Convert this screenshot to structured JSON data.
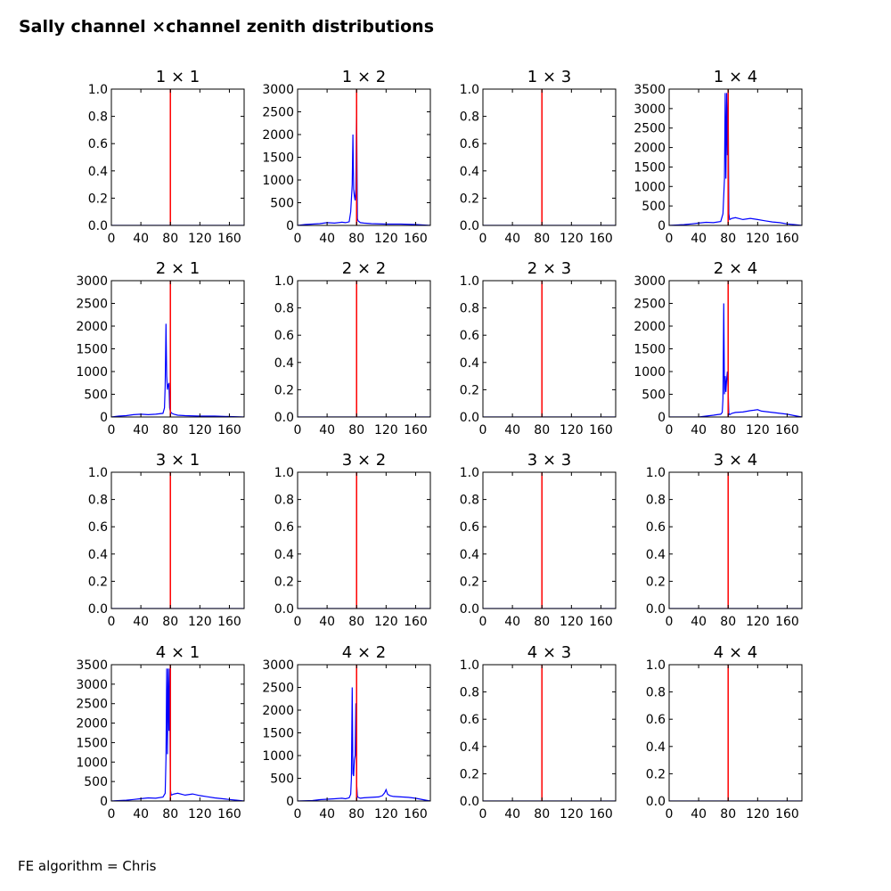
{
  "figure": {
    "title": "Sally channel ×channel zenith distributions",
    "footer": "FE algorithm = Chris"
  },
  "chart_data": [
    {
      "title": "1  × 1",
      "type": "line",
      "xlim": [
        0,
        180
      ],
      "xticks": [
        0,
        40,
        80,
        120,
        160
      ],
      "ylim": [
        0,
        1.0
      ],
      "yticks": [
        "0.0",
        "0.2",
        "0.4",
        "0.6",
        "0.8",
        "1.0"
      ],
      "marker_x": 80,
      "series": [
        {
          "color": "#0000ff",
          "x": [
            0,
            180
          ],
          "y": [
            0,
            0
          ]
        }
      ]
    },
    {
      "title": "1  × 2",
      "type": "line",
      "xlim": [
        0,
        180
      ],
      "xticks": [
        0,
        40,
        80,
        120,
        160
      ],
      "ylim": [
        0,
        3000
      ],
      "yticks": [
        "0",
        "500",
        "1000",
        "1500",
        "2000",
        "2500",
        "3000"
      ],
      "marker_x": 80,
      "series": [
        {
          "color": "#0000ff",
          "x": [
            0,
            10,
            20,
            30,
            40,
            50,
            60,
            65,
            70,
            72,
            74,
            75,
            76,
            77,
            78,
            79,
            80,
            81,
            82,
            85,
            90,
            100,
            120,
            140,
            160,
            170,
            180
          ],
          "y": [
            0,
            20,
            30,
            40,
            60,
            50,
            70,
            60,
            80,
            300,
            900,
            2000,
            800,
            650,
            550,
            800,
            2650,
            150,
            100,
            60,
            50,
            40,
            30,
            30,
            20,
            10,
            0
          ]
        }
      ]
    },
    {
      "title": "1  × 3",
      "type": "line",
      "xlim": [
        0,
        180
      ],
      "xticks": [
        0,
        40,
        80,
        120,
        160
      ],
      "ylim": [
        0,
        1.0
      ],
      "yticks": [
        "0.0",
        "0.2",
        "0.4",
        "0.6",
        "0.8",
        "1.0"
      ],
      "marker_x": 80,
      "series": [
        {
          "color": "#0000ff",
          "x": [
            0,
            180
          ],
          "y": [
            0,
            0
          ]
        }
      ]
    },
    {
      "title": "1  × 4",
      "type": "line",
      "xlim": [
        0,
        180
      ],
      "xticks": [
        0,
        40,
        80,
        120,
        160
      ],
      "ylim": [
        0,
        3500
      ],
      "yticks": [
        "0",
        "500",
        "1000",
        "1500",
        "2000",
        "2500",
        "3000",
        "3500"
      ],
      "marker_x": 80,
      "series": [
        {
          "color": "#0000ff",
          "x": [
            0,
            20,
            30,
            40,
            50,
            60,
            70,
            73,
            75,
            76,
            77,
            78,
            79,
            80,
            81,
            82,
            85,
            90,
            100,
            110,
            120,
            130,
            140,
            150,
            160,
            170,
            180
          ],
          "y": [
            0,
            20,
            40,
            60,
            80,
            70,
            100,
            300,
            1200,
            3400,
            1200,
            3400,
            1800,
            3400,
            300,
            150,
            180,
            200,
            150,
            180,
            150,
            120,
            90,
            70,
            40,
            20,
            0
          ]
        }
      ]
    },
    {
      "title": "2  × 1",
      "type": "line",
      "xlim": [
        0,
        180
      ],
      "xticks": [
        0,
        40,
        80,
        120,
        160
      ],
      "ylim": [
        0,
        3000
      ],
      "yticks": [
        "0",
        "500",
        "1000",
        "1500",
        "2000",
        "2500",
        "3000"
      ],
      "marker_x": 80,
      "series": [
        {
          "color": "#0000ff",
          "x": [
            0,
            10,
            20,
            30,
            40,
            50,
            60,
            70,
            72,
            73,
            74,
            75,
            76,
            77,
            78,
            79,
            80,
            82,
            85,
            90,
            100,
            120,
            140,
            160,
            180
          ],
          "y": [
            0,
            20,
            30,
            50,
            60,
            50,
            60,
            80,
            200,
            700,
            2050,
            900,
            600,
            700,
            750,
            200,
            120,
            80,
            60,
            40,
            30,
            20,
            20,
            10,
            0
          ]
        }
      ]
    },
    {
      "title": "2  × 2",
      "type": "line",
      "xlim": [
        0,
        180
      ],
      "xticks": [
        0,
        40,
        80,
        120,
        160
      ],
      "ylim": [
        0,
        1.0
      ],
      "yticks": [
        "0.0",
        "0.2",
        "0.4",
        "0.6",
        "0.8",
        "1.0"
      ],
      "marker_x": 80,
      "series": [
        {
          "color": "#0000ff",
          "x": [
            0,
            180
          ],
          "y": [
            0,
            0
          ]
        }
      ]
    },
    {
      "title": "2  × 3",
      "type": "line",
      "xlim": [
        0,
        180
      ],
      "xticks": [
        0,
        40,
        80,
        120,
        160
      ],
      "ylim": [
        0,
        1.0
      ],
      "yticks": [
        "0.0",
        "0.2",
        "0.4",
        "0.6",
        "0.8",
        "1.0"
      ],
      "marker_x": 80,
      "series": [
        {
          "color": "#0000ff",
          "x": [
            0,
            180
          ],
          "y": [
            0,
            0
          ]
        }
      ]
    },
    {
      "title": "2  × 4",
      "type": "line",
      "xlim": [
        0,
        180
      ],
      "xticks": [
        0,
        40,
        80,
        120,
        160
      ],
      "ylim": [
        0,
        3000
      ],
      "yticks": [
        "0",
        "500",
        "1000",
        "1500",
        "2000",
        "2500",
        "3000"
      ],
      "marker_x": 80,
      "series": [
        {
          "color": "#0000ff",
          "x": [
            0,
            40,
            50,
            60,
            65,
            70,
            72,
            73,
            74,
            75,
            76,
            77,
            78,
            79,
            80,
            81,
            82,
            85,
            90,
            100,
            110,
            115,
            120,
            125,
            130,
            140,
            150,
            160,
            170,
            180
          ],
          "y": [
            0,
            0,
            20,
            40,
            50,
            60,
            100,
            400,
            2500,
            500,
            900,
            550,
            850,
            1000,
            600,
            80,
            50,
            80,
            100,
            110,
            140,
            150,
            160,
            130,
            120,
            100,
            80,
            60,
            30,
            0
          ]
        }
      ]
    },
    {
      "title": "3  × 1",
      "type": "line",
      "xlim": [
        0,
        180
      ],
      "xticks": [
        0,
        40,
        80,
        120,
        160
      ],
      "ylim": [
        0,
        1.0
      ],
      "yticks": [
        "0.0",
        "0.2",
        "0.4",
        "0.6",
        "0.8",
        "1.0"
      ],
      "marker_x": 80,
      "series": [
        {
          "color": "#0000ff",
          "x": [
            0,
            180
          ],
          "y": [
            0,
            0
          ]
        }
      ]
    },
    {
      "title": "3  × 2",
      "type": "line",
      "xlim": [
        0,
        180
      ],
      "xticks": [
        0,
        40,
        80,
        120,
        160
      ],
      "ylim": [
        0,
        1.0
      ],
      "yticks": [
        "0.0",
        "0.2",
        "0.4",
        "0.6",
        "0.8",
        "1.0"
      ],
      "marker_x": 80,
      "series": [
        {
          "color": "#0000ff",
          "x": [
            0,
            180
          ],
          "y": [
            0,
            0
          ]
        }
      ]
    },
    {
      "title": "3  × 3",
      "type": "line",
      "xlim": [
        0,
        180
      ],
      "xticks": [
        0,
        40,
        80,
        120,
        160
      ],
      "ylim": [
        0,
        1.0
      ],
      "yticks": [
        "0.0",
        "0.2",
        "0.4",
        "0.6",
        "0.8",
        "1.0"
      ],
      "marker_x": 80,
      "series": [
        {
          "color": "#0000ff",
          "x": [
            0,
            180
          ],
          "y": [
            0,
            0
          ]
        }
      ]
    },
    {
      "title": "3  × 4",
      "type": "line",
      "xlim": [
        0,
        180
      ],
      "xticks": [
        0,
        40,
        80,
        120,
        160
      ],
      "ylim": [
        0,
        1.0
      ],
      "yticks": [
        "0.0",
        "0.2",
        "0.4",
        "0.6",
        "0.8",
        "1.0"
      ],
      "marker_x": 80,
      "series": [
        {
          "color": "#0000ff",
          "x": [
            0,
            180
          ],
          "y": [
            0,
            0
          ]
        }
      ]
    },
    {
      "title": "4  × 1",
      "type": "line",
      "xlim": [
        0,
        180
      ],
      "xticks": [
        0,
        40,
        80,
        120,
        160
      ],
      "ylim": [
        0,
        3500
      ],
      "yticks": [
        "0",
        "500",
        "1000",
        "1500",
        "2000",
        "2500",
        "3000",
        "3500"
      ],
      "marker_x": 80,
      "series": [
        {
          "color": "#0000ff",
          "x": [
            0,
            20,
            30,
            40,
            50,
            60,
            70,
            73,
            74,
            75,
            76,
            77,
            78,
            79,
            80,
            81,
            82,
            85,
            90,
            100,
            110,
            120,
            130,
            140,
            150,
            160,
            170,
            180
          ],
          "y": [
            0,
            20,
            40,
            60,
            80,
            70,
            100,
            200,
            1100,
            3400,
            1200,
            3400,
            1800,
            3400,
            300,
            150,
            160,
            180,
            200,
            150,
            180,
            140,
            110,
            80,
            60,
            40,
            20,
            0
          ]
        }
      ]
    },
    {
      "title": "4  × 2",
      "type": "line",
      "xlim": [
        0,
        180
      ],
      "xticks": [
        0,
        40,
        80,
        120,
        160
      ],
      "ylim": [
        0,
        3000
      ],
      "yticks": [
        "0",
        "500",
        "1000",
        "1500",
        "2000",
        "2500",
        "3000"
      ],
      "marker_x": 80,
      "series": [
        {
          "color": "#0000ff",
          "x": [
            0,
            20,
            30,
            40,
            50,
            60,
            65,
            70,
            72,
            73,
            74,
            75,
            76,
            77,
            78,
            79,
            80,
            81,
            82,
            85,
            90,
            100,
            110,
            115,
            118,
            120,
            122,
            125,
            130,
            140,
            150,
            160,
            170,
            180
          ],
          "y": [
            0,
            10,
            30,
            40,
            50,
            60,
            50,
            70,
            150,
            500,
            2500,
            600,
            550,
            900,
            1000,
            2150,
            400,
            100,
            80,
            60,
            70,
            80,
            90,
            120,
            180,
            250,
            150,
            120,
            100,
            90,
            80,
            60,
            30,
            0
          ]
        }
      ]
    },
    {
      "title": "4  × 3",
      "type": "line",
      "xlim": [
        0,
        180
      ],
      "xticks": [
        0,
        40,
        80,
        120,
        160
      ],
      "ylim": [
        0,
        1.0
      ],
      "yticks": [
        "0.0",
        "0.2",
        "0.4",
        "0.6",
        "0.8",
        "1.0"
      ],
      "marker_x": 80,
      "series": [
        {
          "color": "#0000ff",
          "x": [
            0,
            180
          ],
          "y": [
            0,
            0
          ]
        }
      ]
    },
    {
      "title": "4  × 4",
      "type": "line",
      "xlim": [
        0,
        180
      ],
      "xticks": [
        0,
        40,
        80,
        120,
        160
      ],
      "ylim": [
        0,
        1.0
      ],
      "yticks": [
        "0.0",
        "0.2",
        "0.4",
        "0.6",
        "0.8",
        "1.0"
      ],
      "marker_x": 80,
      "series": [
        {
          "color": "#0000ff",
          "x": [
            0,
            180
          ],
          "y": [
            0,
            0
          ]
        }
      ]
    }
  ]
}
